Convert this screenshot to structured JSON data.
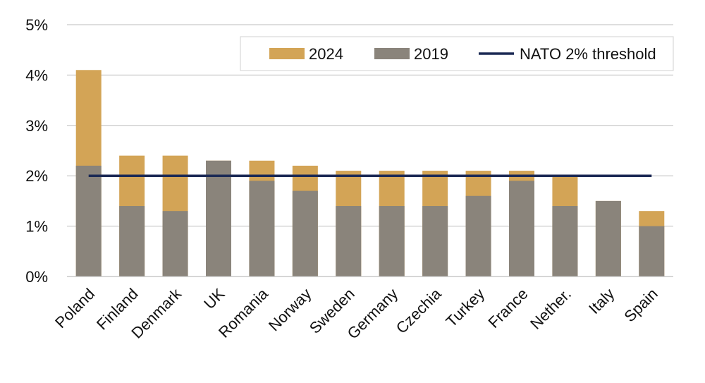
{
  "chart_data": {
    "type": "bar",
    "title": "",
    "xlabel": "",
    "ylabel": "",
    "ylim": [
      0,
      5
    ],
    "y_ticks": [
      0,
      1,
      2,
      3,
      4,
      5
    ],
    "y_tick_labels": [
      "0%",
      "1%",
      "2%",
      "3%",
      "4%",
      "5%"
    ],
    "grid": true,
    "categories": [
      "Poland",
      "Finland",
      "Denmark",
      "UK",
      "Romania",
      "Norway",
      "Sweden",
      "Germany",
      "Czechia",
      "Turkey",
      "France",
      "Nether.",
      "Italy",
      "Spain"
    ],
    "series": [
      {
        "name": "2024",
        "values": [
          4.1,
          2.4,
          2.4,
          2.3,
          2.3,
          2.2,
          2.1,
          2.1,
          2.1,
          2.1,
          2.1,
          2.0,
          1.5,
          1.3
        ],
        "color": "#D3A456"
      },
      {
        "name": "2019",
        "values": [
          2.2,
          1.4,
          1.3,
          2.3,
          1.9,
          1.7,
          1.4,
          1.4,
          1.4,
          1.6,
          1.9,
          1.4,
          1.5,
          1.0
        ],
        "color": "#8A847B"
      }
    ],
    "threshold": {
      "name": "NATO 2% threshold",
      "value": 2.0,
      "color": "#1C2A55"
    },
    "legend": {
      "position": "top-right",
      "entries": [
        "2024",
        "2019",
        "NATO 2% threshold"
      ]
    }
  }
}
